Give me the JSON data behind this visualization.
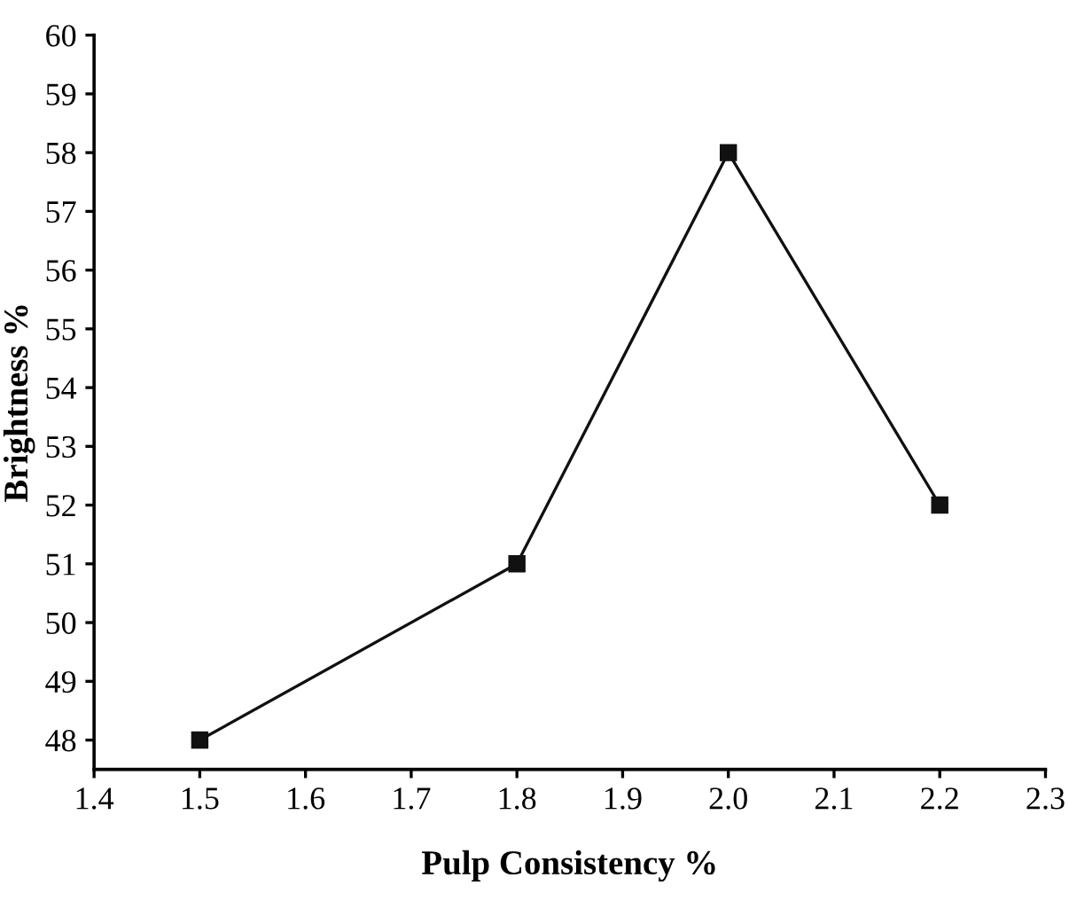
{
  "chart_data": {
    "type": "line",
    "xlabel": "Pulp Consistency %",
    "ylabel": "Brightness %",
    "x": [
      1.5,
      1.8,
      2.0,
      2.2
    ],
    "series": [
      {
        "color": "#111111",
        "values": [
          48,
          51,
          58,
          52
        ]
      }
    ],
    "xlim": [
      1.4,
      2.3
    ],
    "xticks": [
      {
        "value": 1.4,
        "label": "1.4"
      },
      {
        "value": 1.5,
        "label": "1.5"
      },
      {
        "value": 1.6,
        "label": "1.6"
      },
      {
        "value": 1.7,
        "label": "1.7"
      },
      {
        "value": 1.8,
        "label": "1.8"
      },
      {
        "value": 1.9,
        "label": "1.9"
      },
      {
        "value": 2.0,
        "label": "2.0"
      },
      {
        "value": 2.1,
        "label": "2.1"
      },
      {
        "value": 2.2,
        "label": "2.2"
      },
      {
        "value": 2.3,
        "label": "2.3"
      }
    ],
    "ylim": [
      47.5,
      60
    ],
    "yticks": [
      48,
      49,
      50,
      51,
      52,
      53,
      54,
      55,
      56,
      57,
      58,
      59,
      60
    ],
    "marker": "square",
    "line_style": "solid",
    "grid": false,
    "legend": false
  }
}
